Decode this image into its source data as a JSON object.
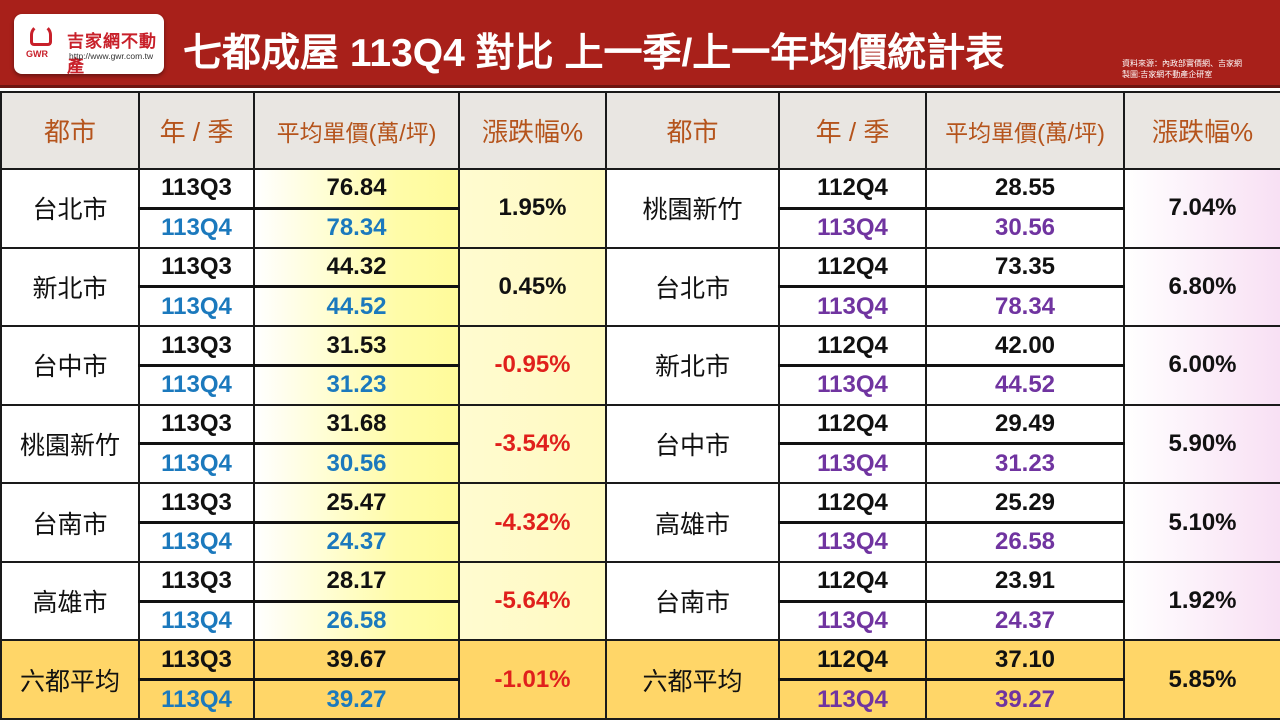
{
  "header": {
    "logo": {
      "name": "吉家網不動產",
      "abbr": "GWR",
      "url": "http://www.gwr.com.tw"
    },
    "title": "七都成屋  113Q4 對比 上一季/上一年均價統計表",
    "source_line1": "資料來源：內政部實價網、吉家網",
    "source_line2": "製圖:吉家網不動產企研室"
  },
  "columns": [
    "都市",
    "年 / 季",
    "平均單價(萬/坪)",
    "漲跌幅%",
    "都市",
    "年 / 季",
    "平均單價(萬/坪)",
    "漲跌幅%"
  ],
  "colors": {
    "banner": "#a8201a",
    "header_text": "#b5541c",
    "q4_left": "#1b79bd",
    "q4_right": "#7034a0",
    "negative": "#e0201c",
    "average_row": "#ffd668"
  },
  "rows": [
    {
      "l_city": "台北市",
      "l_p1": "113Q3",
      "l_v1": "76.84",
      "l_p2": "113Q4",
      "l_v2": "78.34",
      "l_rate": "1.95%",
      "l_neg": false,
      "r_city": "桃園新竹",
      "r_p1": "112Q4",
      "r_v1": "28.55",
      "r_p2": "113Q4",
      "r_v2": "30.56",
      "r_rate": "7.04%"
    },
    {
      "l_city": "新北市",
      "l_p1": "113Q3",
      "l_v1": "44.32",
      "l_p2": "113Q4",
      "l_v2": "44.52",
      "l_rate": "0.45%",
      "l_neg": false,
      "r_city": "台北市",
      "r_p1": "112Q4",
      "r_v1": "73.35",
      "r_p2": "113Q4",
      "r_v2": "78.34",
      "r_rate": "6.80%"
    },
    {
      "l_city": "台中市",
      "l_p1": "113Q3",
      "l_v1": "31.53",
      "l_p2": "113Q4",
      "l_v2": "31.23",
      "l_rate": "-0.95%",
      "l_neg": true,
      "r_city": "新北市",
      "r_p1": "112Q4",
      "r_v1": "42.00",
      "r_p2": "113Q4",
      "r_v2": "44.52",
      "r_rate": "6.00%"
    },
    {
      "l_city": "桃園新竹",
      "l_p1": "113Q3",
      "l_v1": "31.68",
      "l_p2": "113Q4",
      "l_v2": "30.56",
      "l_rate": "-3.54%",
      "l_neg": true,
      "r_city": "台中市",
      "r_p1": "112Q4",
      "r_v1": "29.49",
      "r_p2": "113Q4",
      "r_v2": "31.23",
      "r_rate": "5.90%"
    },
    {
      "l_city": "台南市",
      "l_p1": "113Q3",
      "l_v1": "25.47",
      "l_p2": "113Q4",
      "l_v2": "24.37",
      "l_rate": "-4.32%",
      "l_neg": true,
      "r_city": "高雄市",
      "r_p1": "112Q4",
      "r_v1": "25.29",
      "r_p2": "113Q4",
      "r_v2": "26.58",
      "r_rate": "5.10%"
    },
    {
      "l_city": "高雄市",
      "l_p1": "113Q3",
      "l_v1": "28.17",
      "l_p2": "113Q4",
      "l_v2": "26.58",
      "l_rate": "-5.64%",
      "l_neg": true,
      "r_city": "台南市",
      "r_p1": "112Q4",
      "r_v1": "23.91",
      "r_p2": "113Q4",
      "r_v2": "24.37",
      "r_rate": "1.92%"
    },
    {
      "l_city": "六都平均",
      "l_p1": "113Q3",
      "l_v1": "39.67",
      "l_p2": "113Q4",
      "l_v2": "39.27",
      "l_rate": "-1.01%",
      "l_neg": true,
      "r_city": "六都平均",
      "r_p1": "112Q4",
      "r_v1": "37.10",
      "r_p2": "113Q4",
      "r_v2": "39.27",
      "r_rate": "5.85%",
      "average": true
    }
  ]
}
